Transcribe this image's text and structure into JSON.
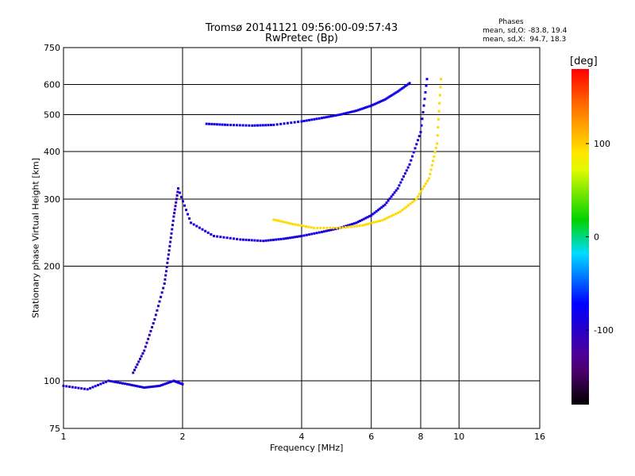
{
  "title": {
    "line1": "Tromsø 20141121 09:56:00-09:57:43",
    "line2": "RwPretec (Bp)"
  },
  "phase_stats": {
    "heading": "Phases",
    "line1": "mean, sd,O: -83.8, 19.4",
    "line2": "mean, sd,X:  94.7, 18.3"
  },
  "chart_data": {
    "type": "scatter",
    "title": "Tromsø 20141121 09:56:00-09:57:43",
    "subtitle": "RwPretec (Bp)",
    "xlabel": "Frequency [MHz]",
    "ylabel": "Stationary phase Virtual Height [km]",
    "x_scale": "log",
    "y_scale": "log",
    "xlim": [
      1,
      16
    ],
    "ylim": [
      75,
      750
    ],
    "x_ticks": [
      1,
      2,
      4,
      6,
      8,
      10,
      16
    ],
    "y_ticks": [
      75,
      100,
      200,
      300,
      400,
      500,
      600,
      750
    ],
    "grid": true,
    "colorbar": {
      "label": "[deg]",
      "range": [
        -180,
        180
      ],
      "ticks": [
        -100,
        0,
        100
      ],
      "colormap": "rainbow (black-purple-blue-cyan-green-yellow-red)"
    },
    "traces": [
      {
        "name": "",
        "description": "low ionosphere echoes",
        "x": [
          1.0,
          1.15,
          1.3,
          1.45,
          1.6,
          1.75,
          1.9,
          2.0
        ],
        "y": [
          97,
          95,
          100,
          98,
          96,
          97,
          100,
          98
        ],
        "phase": -90
      },
      {
        "name": "",
        "description": "E/F1 rising branch",
        "x": [
          1.5,
          1.6,
          1.7,
          1.8,
          1.85,
          1.9,
          1.95
        ],
        "y": [
          105,
          120,
          145,
          180,
          220,
          270,
          320
        ],
        "phase": -105
      },
      {
        "name": "",
        "description": "O-mode F1 trace",
        "x": [
          1.95,
          2.1,
          2.4,
          2.8,
          3.2,
          3.6,
          4.0,
          4.5,
          5.0,
          5.5,
          6.0,
          6.5,
          7.0,
          7.5,
          8.0,
          8.3
        ],
        "y": [
          320,
          260,
          240,
          235,
          233,
          236,
          240,
          246,
          252,
          260,
          272,
          290,
          320,
          370,
          450,
          620
        ],
        "phase": -90
      },
      {
        "name": "",
        "description": "X-mode F trace",
        "x": [
          3.4,
          3.8,
          4.3,
          5.0,
          5.7,
          6.4,
          7.1,
          7.8,
          8.4,
          8.8,
          9.0
        ],
        "y": [
          265,
          258,
          252,
          252,
          256,
          264,
          278,
          300,
          340,
          420,
          620
        ],
        "phase": 95
      },
      {
        "name": "",
        "description": "upper F2 trace",
        "x": [
          2.3,
          2.6,
          3.0,
          3.4,
          4.0,
          4.5,
          5.0,
          5.5,
          6.0,
          6.5,
          7.0,
          7.5
        ],
        "y": [
          473,
          470,
          468,
          470,
          480,
          490,
          500,
          512,
          528,
          548,
          575,
          605
        ],
        "phase": -85
      }
    ]
  }
}
